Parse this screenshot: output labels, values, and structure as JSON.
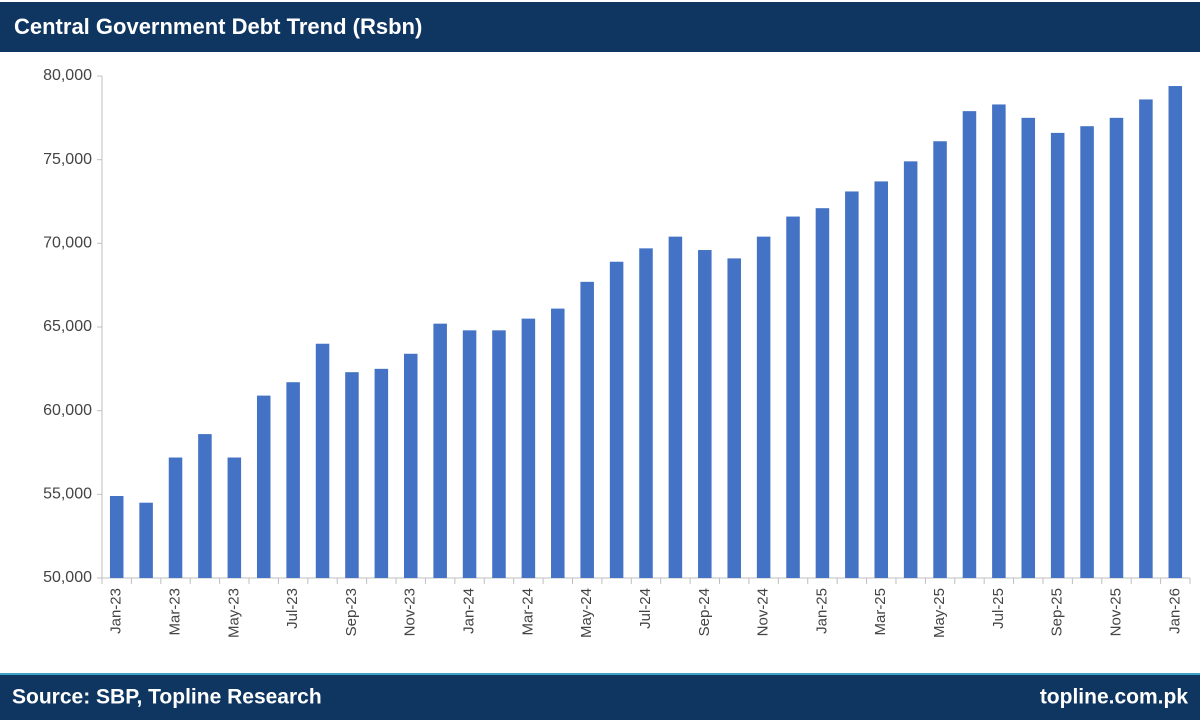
{
  "chart_data": {
    "type": "bar",
    "title": "Central Government Debt Trend (Rsbn)",
    "source": "Source: SBP, Topline Research",
    "website": "topline.com.pk",
    "categories": [
      "Jan-23",
      null,
      "Mar-23",
      null,
      "May-23",
      null,
      "Jul-23",
      null,
      "Sep-23",
      null,
      "Nov-23",
      null,
      "Jan-24",
      null,
      "Mar-24",
      null,
      "May-24",
      null,
      "Jul-24",
      null,
      "Sep-24",
      null,
      "Nov-24",
      null,
      "Jan-25",
      null,
      "Mar-25",
      null,
      "May-25",
      null,
      "Jul-25",
      null,
      "Sep-25",
      null,
      "Nov-25",
      null,
      "Jan-26"
    ],
    "values": [
      54900,
      54500,
      57200,
      58600,
      57200,
      60900,
      61700,
      64000,
      62300,
      62500,
      63400,
      65200,
      64800,
      64800,
      65500,
      66100,
      67700,
      68900,
      69700,
      70400,
      69600,
      69100,
      70400,
      71600,
      72100,
      73100,
      73700,
      74900,
      76100,
      77900,
      78300,
      77500,
      76600,
      77000,
      77500,
      78600,
      79400
    ],
    "color": "#4472c4",
    "ylim": [
      50000,
      80000
    ],
    "yticks": [
      {
        "value": 50000,
        "label": "50,000"
      },
      {
        "value": 55000,
        "label": "55,000"
      },
      {
        "value": 60000,
        "label": "60,000"
      },
      {
        "value": 65000,
        "label": "65,000"
      },
      {
        "value": 70000,
        "label": "70,000"
      },
      {
        "value": 75000,
        "label": "75,000"
      },
      {
        "value": 80000,
        "label": "80,000"
      }
    ],
    "grid": false
  }
}
